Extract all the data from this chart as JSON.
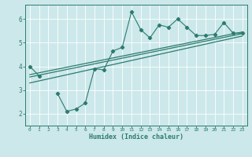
{
  "title": "",
  "xlabel": "Humidex (Indice chaleur)",
  "x_data": [
    0,
    1,
    2,
    3,
    4,
    5,
    6,
    7,
    8,
    9,
    10,
    11,
    12,
    13,
    14,
    15,
    16,
    17,
    18,
    19,
    20,
    21,
    22,
    23
  ],
  "y_main": [
    4.0,
    3.6,
    null,
    2.85,
    2.1,
    2.2,
    2.45,
    3.9,
    3.85,
    4.65,
    4.8,
    6.3,
    5.55,
    5.2,
    5.75,
    5.65,
    6.0,
    5.65,
    5.3,
    5.3,
    5.35,
    5.85,
    5.4,
    5.4
  ],
  "reg_line1_x": [
    0,
    23
  ],
  "reg_line1_y": [
    3.3,
    5.28
  ],
  "reg_line2_x": [
    0,
    23
  ],
  "reg_line2_y": [
    3.55,
    5.38
  ],
  "reg_line3_x": [
    0,
    23
  ],
  "reg_line3_y": [
    3.65,
    5.45
  ],
  "ylim": [
    1.5,
    6.6
  ],
  "xlim": [
    -0.5,
    23.5
  ],
  "bg_color": "#cce8ea",
  "line_color": "#2d7b6e",
  "grid_color": "#ffffff",
  "tick_color": "#2d7b6e",
  "yticks": [
    2,
    3,
    4,
    5,
    6
  ],
  "xticks": [
    0,
    1,
    2,
    3,
    4,
    5,
    6,
    7,
    8,
    9,
    10,
    11,
    12,
    13,
    14,
    15,
    16,
    17,
    18,
    19,
    20,
    21,
    22,
    23
  ]
}
